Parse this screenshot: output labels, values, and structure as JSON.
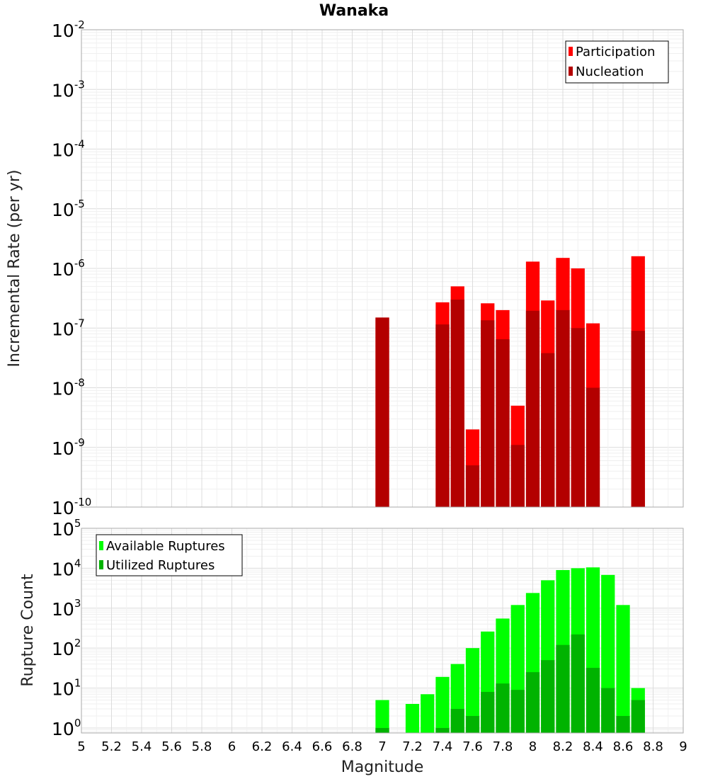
{
  "chart_data": [
    {
      "type": "bar",
      "title": "Wanaka",
      "xlabel": "Magnitude",
      "ylabel": "Incremental Rate (per yr)",
      "yscale": "log",
      "ylim": [
        1e-10,
        0.01
      ],
      "xlim": [
        5,
        9
      ],
      "grid": true,
      "legend_position": "top-right",
      "bin_width": 0.1,
      "series": [
        {
          "name": "Participation",
          "color": "#ff0000",
          "x": [
            7.0,
            7.4,
            7.5,
            7.6,
            7.7,
            7.8,
            7.9,
            8.0,
            8.1,
            8.2,
            8.3,
            8.4,
            8.7
          ],
          "values": [
            1.5e-07,
            2.7e-07,
            5e-07,
            2e-09,
            2.6e-07,
            2e-07,
            5e-09,
            1.3e-06,
            2.9e-07,
            1.5e-06,
            1e-06,
            1.2e-07,
            1.6e-06
          ]
        },
        {
          "name": "Nucleation",
          "color": "#b30000",
          "x": [
            7.0,
            7.4,
            7.5,
            7.6,
            7.7,
            7.8,
            7.9,
            8.0,
            8.1,
            8.2,
            8.3,
            8.4,
            8.7
          ],
          "values": [
            1.5e-07,
            1.15e-07,
            3e-07,
            5e-10,
            1.35e-07,
            6.5e-08,
            1.1e-09,
            1.95e-07,
            3.8e-08,
            2e-07,
            1e-07,
            1e-08,
            9e-08
          ]
        }
      ]
    },
    {
      "type": "bar",
      "title": "",
      "xlabel": "Magnitude",
      "ylabel": "Rupture Count",
      "yscale": "log",
      "ylim": [
        0.75,
        100000.0
      ],
      "xlim": [
        5,
        9
      ],
      "grid": true,
      "legend_position": "top-left",
      "bin_width": 0.1,
      "series": [
        {
          "name": "Available Ruptures",
          "color": "#00ff00",
          "x": [
            7.0,
            7.2,
            7.3,
            7.4,
            7.5,
            7.6,
            7.7,
            7.8,
            7.9,
            8.0,
            8.1,
            8.2,
            8.3,
            8.4,
            8.5,
            8.6,
            8.7
          ],
          "values": [
            5,
            4,
            7,
            19,
            40,
            100,
            260,
            550,
            1200,
            2400,
            5000,
            9000,
            10000,
            10500,
            6800,
            1200,
            10
          ]
        },
        {
          "name": "Utilized Ruptures",
          "color": "#00b300",
          "x": [
            7.0,
            7.4,
            7.5,
            7.6,
            7.7,
            7.8,
            7.9,
            8.0,
            8.1,
            8.2,
            8.3,
            8.4,
            8.5,
            8.6,
            8.7
          ],
          "values": [
            1,
            1,
            3,
            2,
            8,
            13,
            9,
            25,
            50,
            120,
            220,
            32,
            10,
            2,
            5
          ]
        }
      ]
    }
  ],
  "ticks": {
    "x": [
      "5",
      "5.2",
      "5.4",
      "5.6",
      "5.8",
      "6",
      "6.2",
      "6.4",
      "6.6",
      "6.8",
      "7",
      "7.2",
      "7.4",
      "7.6",
      "7.8",
      "8",
      "8.2",
      "8.4",
      "8.6",
      "8.8",
      "9"
    ],
    "top_y": [
      {
        "base": "10",
        "exp": "-2"
      },
      {
        "base": "10",
        "exp": "-3"
      },
      {
        "base": "10",
        "exp": "-4"
      },
      {
        "base": "10",
        "exp": "-5"
      },
      {
        "base": "10",
        "exp": "-6"
      },
      {
        "base": "10",
        "exp": "-7"
      },
      {
        "base": "10",
        "exp": "-8"
      },
      {
        "base": "10",
        "exp": "-9"
      },
      {
        "base": "10",
        "exp": "-10"
      }
    ],
    "bottom_y": [
      {
        "base": "10",
        "exp": "5"
      },
      {
        "base": "10",
        "exp": "4"
      },
      {
        "base": "10",
        "exp": "3"
      },
      {
        "base": "10",
        "exp": "2"
      },
      {
        "base": "10",
        "exp": "1"
      },
      {
        "base": "10",
        "exp": "0"
      }
    ]
  }
}
